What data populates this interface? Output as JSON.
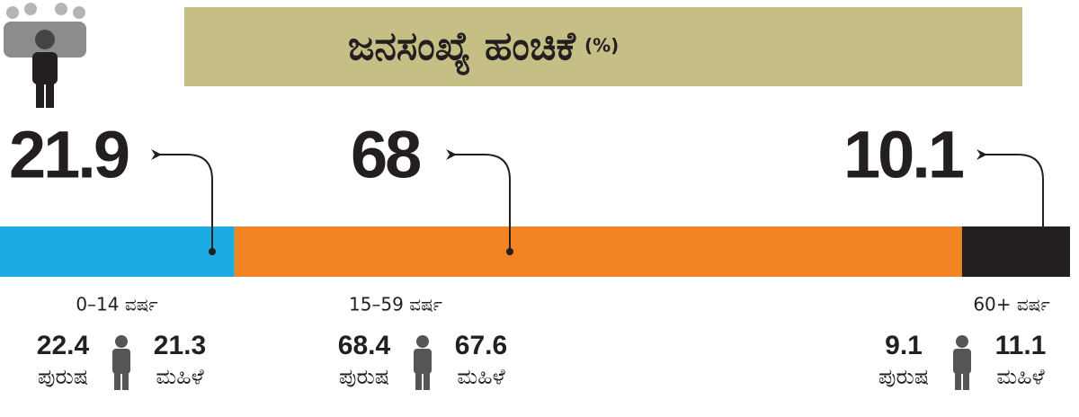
{
  "chart_data": {
    "type": "stacked-bar",
    "title": "ಜನಸಂಖ್ಯೆ ಹಂಚಿಕೆ",
    "subtitle": "(%)",
    "xlim": [
      0,
      100
    ],
    "male_label": "ಪುರುಷ",
    "female_label": "ಮಹಿಳೆ",
    "series": [
      {
        "name": "0–14 ವರ್ಷ",
        "color": "#1aabe3",
        "values": [
          21.9
        ],
        "male": 22.4,
        "female": 21.3
      },
      {
        "name": "15–59 ವರ್ಷ",
        "color": "#f28322",
        "values": [
          68
        ],
        "male": 68.4,
        "female": 67.6
      },
      {
        "name": "60+ ವರ್ಷ",
        "color": "#231f20",
        "values": [
          10.1
        ],
        "male": 9.1,
        "female": 11.1
      }
    ]
  }
}
